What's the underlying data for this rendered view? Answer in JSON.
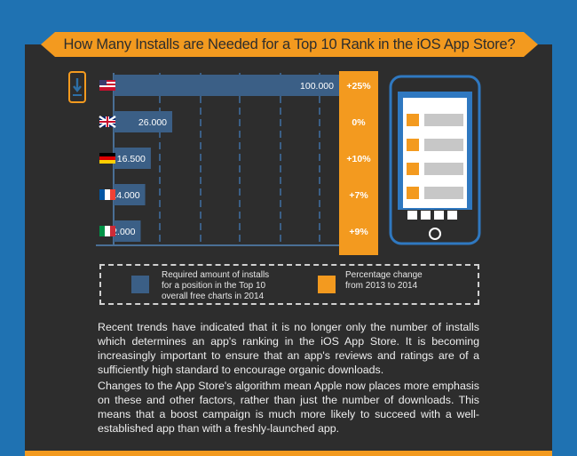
{
  "title": "How Many Installs are Needed for a Top 10 Rank in the iOS App Store?",
  "chart_data": {
    "type": "bar",
    "orientation": "horizontal",
    "categories": [
      "US",
      "UK",
      "Germany",
      "France",
      "Italy"
    ],
    "values": [
      100000,
      26000,
      16500,
      14000,
      12000
    ],
    "value_labels": [
      "100.000",
      "26.000",
      "16.500",
      "14.000",
      "12.000"
    ],
    "percent_change": [
      "+25%",
      "0%",
      "+10%",
      "+7%",
      "+9%"
    ],
    "xlim": [
      0,
      100000
    ],
    "grid": true,
    "colors": {
      "bar": "#3b5f86",
      "percent_column": "#f39a1f",
      "background": "#2d2d2d"
    }
  },
  "legend": {
    "items": [
      {
        "label": "Required amount of installs\nfor a position in the Top 10\noverall free charts in 2014",
        "color": "#3b5f86"
      },
      {
        "label": "Percentage change\nfrom 2013 to 2014",
        "color": "#f39a1f"
      }
    ]
  },
  "paragraphs": [
    "Recent trends have indicated that it is no longer only the number of installs which determines an app's ranking in the iOS App Store. It is becoming increasingly important to ensure that an app's reviews and ratings are of a sufficiently high standard to encourage organic downloads.",
    "Changes to the App Store's algorithm mean Apple now places more emphasis on these and other factors, rather than just the number of downloads. This means that a boost campaign is much more likely to succeed with a well-established app than with a freshly-launched app."
  ],
  "icons": [
    "download-phone-icon",
    "us-flag-icon",
    "uk-flag-icon",
    "germany-flag-icon",
    "france-flag-icon",
    "italy-flag-icon",
    "smartphone-app-list-icon"
  ]
}
